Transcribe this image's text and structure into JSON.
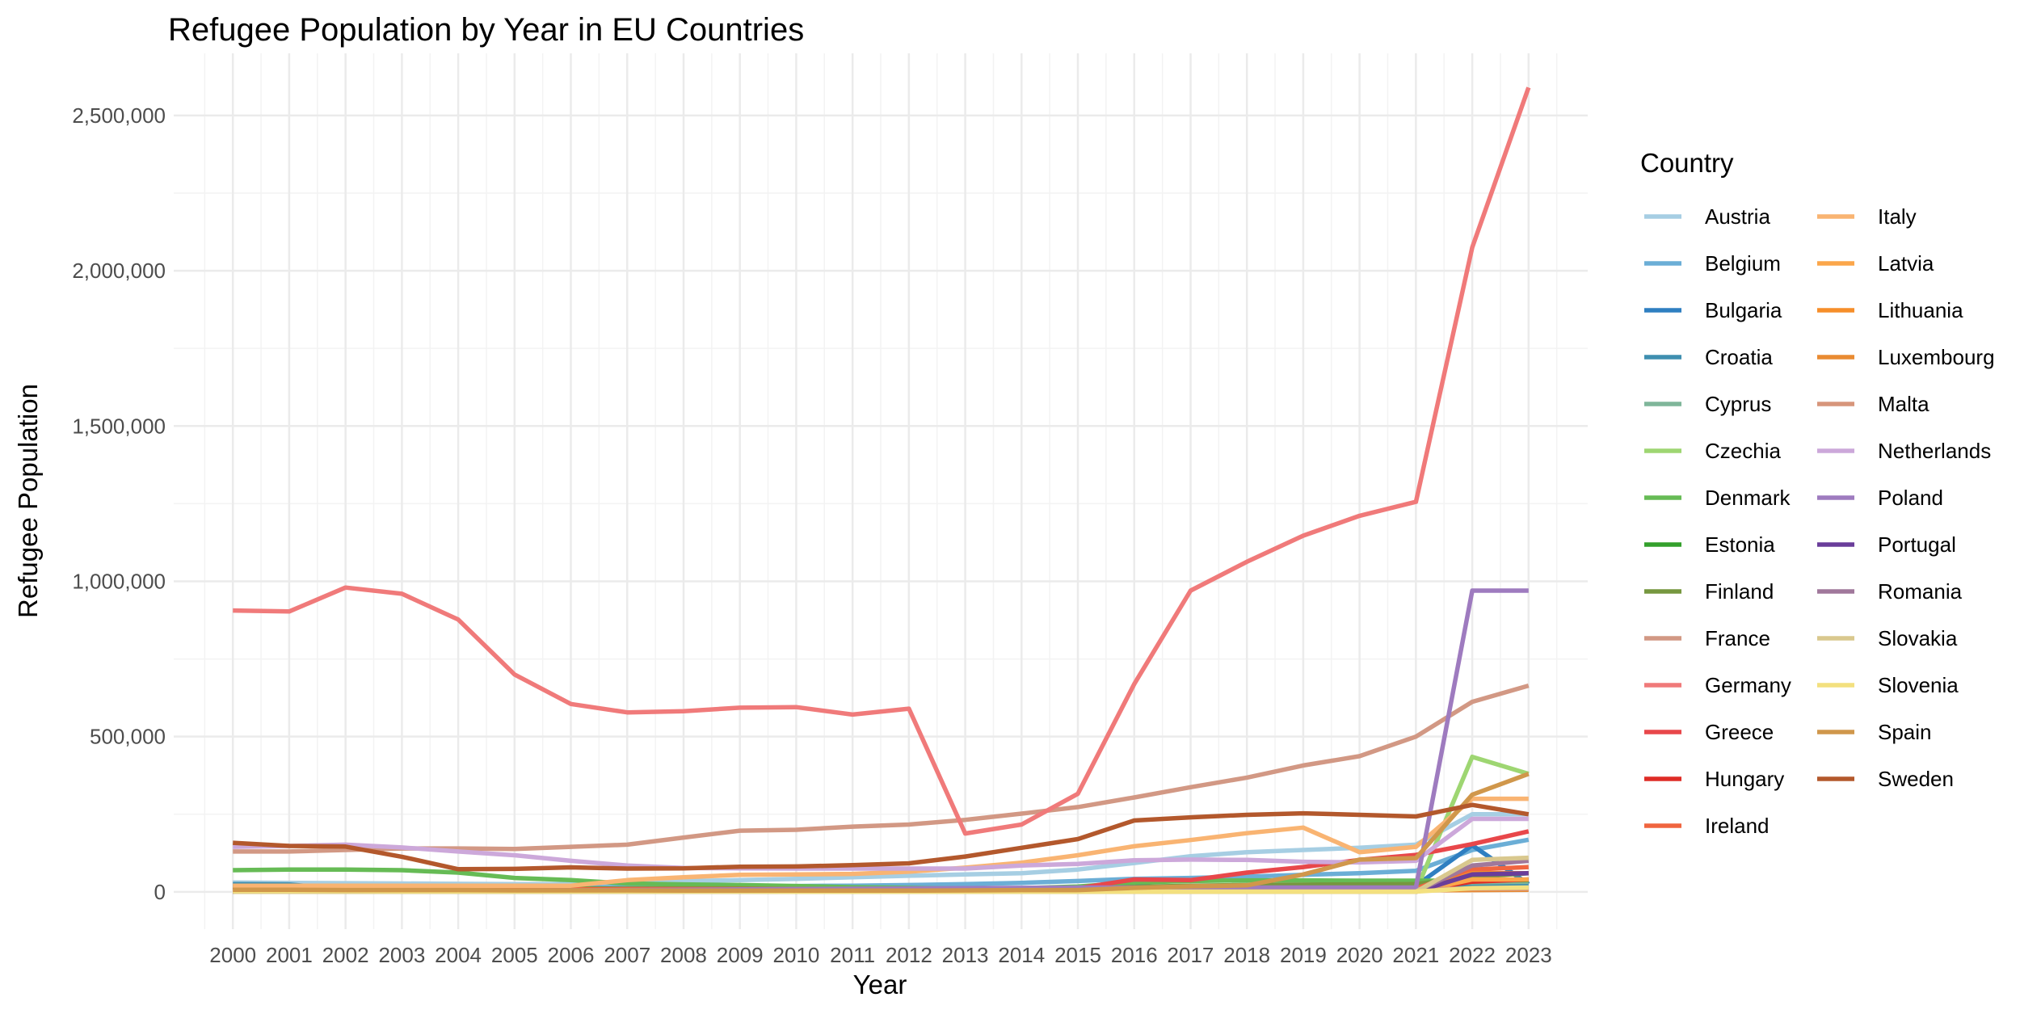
{
  "chart_data": {
    "type": "line",
    "title": "Refugee Population by Year in EU Countries",
    "xlabel": "Year",
    "ylabel": "Refugee Population",
    "legend_title": "Country",
    "legend_position": "right",
    "grid": true,
    "xlim": [
      1998.95,
      2024.05
    ],
    "ylim": [
      -120000,
      2700000
    ],
    "y_ticks": [
      0,
      500000,
      1000000,
      1500000,
      2000000,
      2500000
    ],
    "y_tick_labels": [
      "0",
      "500,000",
      "1,000,000",
      "1,500,000",
      "2,000,000",
      "2,500,000"
    ],
    "x": [
      2000,
      2001,
      2002,
      2003,
      2004,
      2005,
      2006,
      2007,
      2008,
      2009,
      2010,
      2011,
      2012,
      2013,
      2014,
      2015,
      2016,
      2017,
      2018,
      2019,
      2020,
      2021,
      2022,
      2023
    ],
    "x_tick_labels": [
      "2000",
      "2001",
      "2002",
      "2003",
      "2004",
      "2005",
      "2006",
      "2007",
      "2008",
      "2009",
      "2010",
      "2011",
      "2012",
      "2013",
      "2014",
      "2015",
      "2016",
      "2017",
      "2018",
      "2019",
      "2020",
      "2021",
      "2022",
      "2023"
    ],
    "series": [
      {
        "name": "Austria",
        "color": "#A6CEE3",
        "values": [
          30000,
          29000,
          28000,
          27000,
          26000,
          25000,
          25000,
          30000,
          35000,
          38000,
          42000,
          47000,
          52000,
          56000,
          60000,
          72000,
          93000,
          115000,
          128000,
          135000,
          142000,
          152000,
          250000,
          250000
        ]
      },
      {
        "name": "Belgium",
        "color": "#6BAED6",
        "values": [
          15000,
          14000,
          14000,
          13000,
          13000,
          13000,
          14000,
          15000,
          17000,
          18000,
          19000,
          20000,
          22000,
          25000,
          29000,
          35000,
          42000,
          45000,
          49000,
          55000,
          60000,
          68000,
          135000,
          168000
        ]
      },
      {
        "name": "Bulgaria",
        "color": "#2F7FC1",
        "values": [
          3000,
          3000,
          3000,
          3000,
          3000,
          3000,
          3000,
          3000,
          3000,
          3000,
          3000,
          3000,
          3000,
          5000,
          8000,
          16000,
          17000,
          18000,
          18000,
          19000,
          20000,
          20000,
          150000,
          25000
        ]
      },
      {
        "name": "Croatia",
        "color": "#3F8FB0",
        "values": [
          25000,
          24000,
          7000,
          5000,
          4000,
          3000,
          2000,
          2000,
          2000,
          2000,
          1000,
          1000,
          1000,
          1000,
          1000,
          1000,
          1000,
          1000,
          1000,
          1000,
          1000,
          1000,
          25000,
          25000
        ]
      },
      {
        "name": "Cyprus",
        "color": "#7FB69A",
        "values": [
          1000,
          1000,
          1000,
          1000,
          1000,
          1000,
          1000,
          2000,
          2000,
          3000,
          3000,
          4000,
          4000,
          5000,
          6000,
          7000,
          8000,
          11000,
          14000,
          18000,
          22000,
          26000,
          30000,
          33000
        ]
      },
      {
        "name": "Czechia",
        "color": "#9ED672",
        "values": [
          1000,
          1000,
          1000,
          1000,
          1000,
          1000,
          2000,
          2000,
          2000,
          2000,
          2000,
          3000,
          3000,
          3000,
          3000,
          3000,
          3000,
          3000,
          3000,
          3000,
          3000,
          3000,
          435000,
          380000
        ]
      },
      {
        "name": "Denmark",
        "color": "#66BB55",
        "values": [
          70000,
          72000,
          72000,
          70000,
          62000,
          45000,
          38000,
          27000,
          24000,
          22000,
          19000,
          15000,
          13000,
          11000,
          12000,
          17000,
          30000,
          35000,
          37000,
          37000,
          36000,
          36000,
          36000,
          38000
        ]
      },
      {
        "name": "Estonia",
        "color": "#33A02C",
        "values": [
          500,
          500,
          500,
          500,
          500,
          500,
          500,
          500,
          500,
          500,
          500,
          500,
          500,
          500,
          500,
          500,
          500,
          500,
          500,
          500,
          500,
          500,
          38000,
          38000
        ]
      },
      {
        "name": "Finland",
        "color": "#76973F",
        "values": [
          12000,
          12000,
          12000,
          11000,
          11000,
          11000,
          11000,
          11000,
          11000,
          11000,
          9000,
          9000,
          10000,
          11000,
          11000,
          12000,
          16000,
          20000,
          22000,
          23000,
          24000,
          25000,
          48000,
          60000
        ]
      },
      {
        "name": "France",
        "color": "#D29884",
        "values": [
          130000,
          130000,
          135000,
          140000,
          140000,
          138000,
          145000,
          152000,
          175000,
          197000,
          200000,
          210000,
          217000,
          232000,
          252000,
          273000,
          304000,
          337000,
          368000,
          407000,
          437000,
          500000,
          612000,
          664000
        ]
      },
      {
        "name": "Germany",
        "color": "#F07A7A",
        "values": [
          906000,
          903000,
          980000,
          960000,
          877000,
          700000,
          605000,
          578000,
          582000,
          593000,
          595000,
          571000,
          590000,
          188000,
          217000,
          316000,
          669000,
          970000,
          1063000,
          1147000,
          1211000,
          1256000,
          2075000,
          2590000
        ]
      },
      {
        "name": "Greece",
        "color": "#E8474A",
        "values": [
          6000,
          6000,
          2000,
          2000,
          2000,
          2000,
          2000,
          2000,
          2000,
          2000,
          2000,
          2000,
          2000,
          3000,
          10000,
          12000,
          40000,
          38000,
          62000,
          80000,
          103000,
          119000,
          154000,
          195000
        ]
      },
      {
        "name": "Hungary",
        "color": "#DE2C26",
        "values": [
          5000,
          5000,
          5000,
          5000,
          5000,
          5000,
          5000,
          5000,
          5000,
          5000,
          5000,
          5000,
          5000,
          5000,
          5000,
          5000,
          5000,
          5000,
          5000,
          5000,
          5000,
          5000,
          33000,
          40000
        ]
      },
      {
        "name": "Ireland",
        "color": "#F0653F",
        "values": [
          3000,
          4000,
          5000,
          6000,
          7000,
          7000,
          8000,
          9000,
          9000,
          9000,
          9000,
          9000,
          9000,
          8000,
          7000,
          7000,
          7000,
          8000,
          8000,
          9000,
          9000,
          11000,
          72000,
          80000
        ]
      },
      {
        "name": "Italy",
        "color": "#F9B472",
        "values": [
          20000,
          20000,
          20000,
          20000,
          20000,
          20000,
          20000,
          38000,
          47000,
          55000,
          56000,
          58000,
          65000,
          78000,
          94000,
          118000,
          147000,
          167000,
          189000,
          207000,
          128000,
          145000,
          300000,
          300000
        ]
      },
      {
        "name": "Latvia",
        "color": "#FBA64A",
        "values": [
          500,
          500,
          500,
          500,
          500,
          500,
          500,
          500,
          500,
          500,
          500,
          500,
          500,
          500,
          500,
          500,
          500,
          500,
          500,
          500,
          500,
          500,
          40000,
          40000
        ]
      },
      {
        "name": "Lithuania",
        "color": "#F68E2A",
        "values": [
          500,
          500,
          500,
          500,
          500,
          500,
          500,
          500,
          500,
          500,
          500,
          500,
          500,
          500,
          500,
          500,
          500,
          500,
          500,
          500,
          500,
          500,
          60000,
          60000
        ]
      },
      {
        "name": "Luxembourg",
        "color": "#E98B32",
        "values": [
          1000,
          1000,
          1000,
          1000,
          2000,
          2000,
          2000,
          2000,
          2000,
          3000,
          3000,
          3000,
          3000,
          3000,
          4000,
          4000,
          4000,
          4000,
          4000,
          4000,
          5000,
          5000,
          6000,
          7000
        ]
      },
      {
        "name": "Malta",
        "color": "#D7957B",
        "values": [
          500,
          500,
          500,
          500,
          1000,
          2000,
          2000,
          3000,
          4000,
          5000,
          6000,
          7000,
          8000,
          9000,
          9000,
          9000,
          9000,
          9000,
          9000,
          9000,
          9000,
          9000,
          10000,
          10000
        ]
      },
      {
        "name": "Netherlands",
        "color": "#CCA8DA",
        "values": [
          145000,
          148000,
          152000,
          143000,
          130000,
          118000,
          100000,
          85000,
          77000,
          76000,
          75000,
          75000,
          75000,
          75000,
          85000,
          90000,
          102000,
          104000,
          103000,
          97000,
          95000,
          100000,
          235000,
          235000
        ]
      },
      {
        "name": "Poland",
        "color": "#9E7BBF",
        "values": [
          2000,
          2000,
          2000,
          2000,
          2000,
          4000,
          5000,
          6000,
          7000,
          8000,
          9000,
          10000,
          11000,
          12000,
          13000,
          14000,
          14000,
          14000,
          14000,
          14000,
          14000,
          14000,
          970000,
          970000
        ]
      },
      {
        "name": "Portugal",
        "color": "#6A3D9A",
        "values": [
          500,
          500,
          500,
          500,
          500,
          500,
          500,
          500,
          500,
          500,
          500,
          500,
          500,
          500,
          500,
          500,
          500,
          500,
          500,
          500,
          500,
          500,
          56000,
          60000
        ]
      },
      {
        "name": "Romania",
        "color": "#A0789B",
        "values": [
          2000,
          2000,
          2000,
          2000,
          2000,
          2000,
          2000,
          2000,
          2000,
          2000,
          2000,
          2000,
          2000,
          2000,
          2000,
          2000,
          2000,
          2000,
          2000,
          2000,
          2000,
          2000,
          85000,
          100000
        ]
      },
      {
        "name": "Slovakia",
        "color": "#D9C88E",
        "values": [
          500,
          500,
          500,
          500,
          500,
          500,
          500,
          500,
          500,
          500,
          500,
          500,
          500,
          500,
          500,
          500,
          500,
          500,
          500,
          500,
          500,
          500,
          103000,
          110000
        ]
      },
      {
        "name": "Slovenia",
        "color": "#F3E07F",
        "values": [
          3000,
          3000,
          3000,
          2000,
          2000,
          2000,
          2000,
          2000,
          2000,
          2000,
          1000,
          1000,
          1000,
          1000,
          1000,
          1000,
          1000,
          1000,
          1000,
          1000,
          1000,
          1000,
          12000,
          14000
        ]
      },
      {
        "name": "Spain",
        "color": "#D0974B",
        "values": [
          7000,
          7000,
          6000,
          6000,
          6000,
          5000,
          5000,
          5000,
          4000,
          4000,
          4000,
          4000,
          4000,
          5000,
          6000,
          6000,
          13000,
          18000,
          21000,
          56000,
          104000,
          109000,
          313000,
          380000
        ]
      },
      {
        "name": "Sweden",
        "color": "#B3582C",
        "values": [
          158000,
          148000,
          146000,
          113000,
          73000,
          74000,
          79000,
          75000,
          76000,
          81000,
          82000,
          86000,
          92000,
          114000,
          142000,
          170000,
          230000,
          240000,
          248000,
          253000,
          248000,
          243000,
          280000,
          250000
        ]
      }
    ]
  }
}
